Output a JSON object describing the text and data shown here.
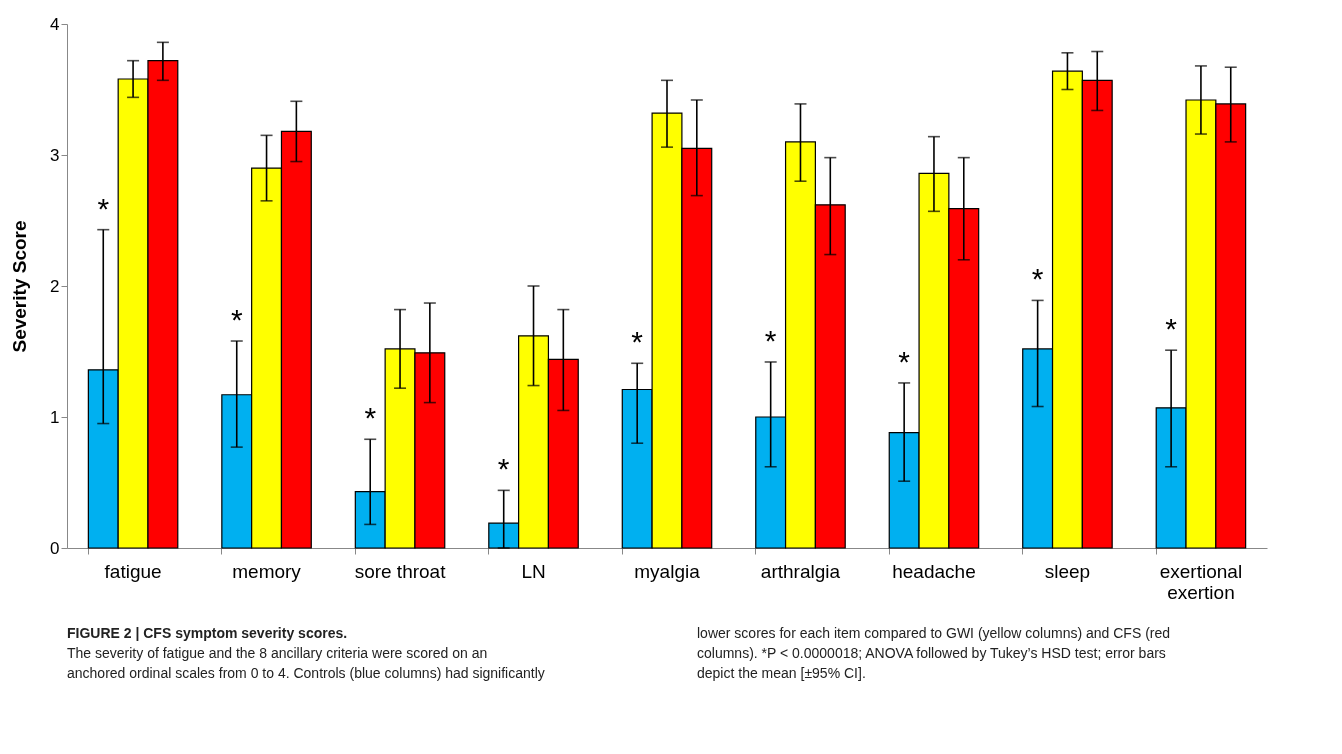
{
  "chart_data": {
    "type": "bar",
    "title": "FIGURE 2 | CFS symptom severity scores.",
    "ylabel": "Severity Score",
    "categories": [
      "fatigue",
      "memory",
      "sore throat",
      "LN",
      "myalgia",
      "arthralgia",
      "headache",
      "sleep",
      "exertional\nexertion"
    ],
    "series": [
      {
        "color": "#00b0f0",
        "values": [
          1.36,
          1.17,
          0.43,
          0.19,
          1.21,
          1.0,
          0.88,
          1.52,
          1.07
        ],
        "errors": [
          [
            0.95,
            2.43
          ],
          [
            0.77,
            1.58
          ],
          [
            0.18,
            0.83
          ],
          [
            0.0,
            0.44
          ],
          [
            0.8,
            1.41
          ],
          [
            0.62,
            1.42
          ],
          [
            0.51,
            1.26
          ],
          [
            1.08,
            1.89
          ],
          [
            0.62,
            1.51
          ]
        ]
      },
      {
        "color": "#ffff00",
        "values": [
          3.58,
          2.9,
          1.52,
          1.62,
          3.32,
          3.1,
          2.86,
          3.64,
          3.42
        ],
        "errors": [
          [
            3.44,
            3.72
          ],
          [
            2.65,
            3.15
          ],
          [
            1.22,
            1.82
          ],
          [
            1.24,
            2.0
          ],
          [
            3.06,
            3.57
          ],
          [
            2.8,
            3.39
          ],
          [
            2.57,
            3.14
          ],
          [
            3.5,
            3.78
          ],
          [
            3.16,
            3.68
          ]
        ]
      },
      {
        "color": "#ff0000",
        "values": [
          3.72,
          3.18,
          1.49,
          1.44,
          3.05,
          2.62,
          2.59,
          3.57,
          3.39
        ],
        "errors": [
          [
            3.57,
            3.86
          ],
          [
            2.95,
            3.41
          ],
          [
            1.11,
            1.87
          ],
          [
            1.05,
            1.82
          ],
          [
            2.69,
            3.42
          ],
          [
            2.24,
            2.98
          ],
          [
            2.2,
            2.98
          ],
          [
            3.34,
            3.79
          ],
          [
            3.1,
            3.67
          ]
        ]
      }
    ],
    "ylim": [
      0,
      4
    ],
    "yticks": [
      0,
      1,
      2,
      3,
      4
    ],
    "grid": false,
    "legend": false,
    "annotations": [
      "*",
      "*",
      "*",
      "*",
      "*",
      "*",
      "*",
      "*",
      "*",
      "The severity of fatigue and the 8 ancillary criteria were scored on an anchored ordinal scales from 0 to 4. Controls (blue columns) had significantly lower scores for each item compared to GWI (yellow columns) and CFS (red columns). *P < 0.0000018; ANOVA followed by Tukey’s HSD test; error bars depict the mean [±95% CI]."
    ]
  }
}
